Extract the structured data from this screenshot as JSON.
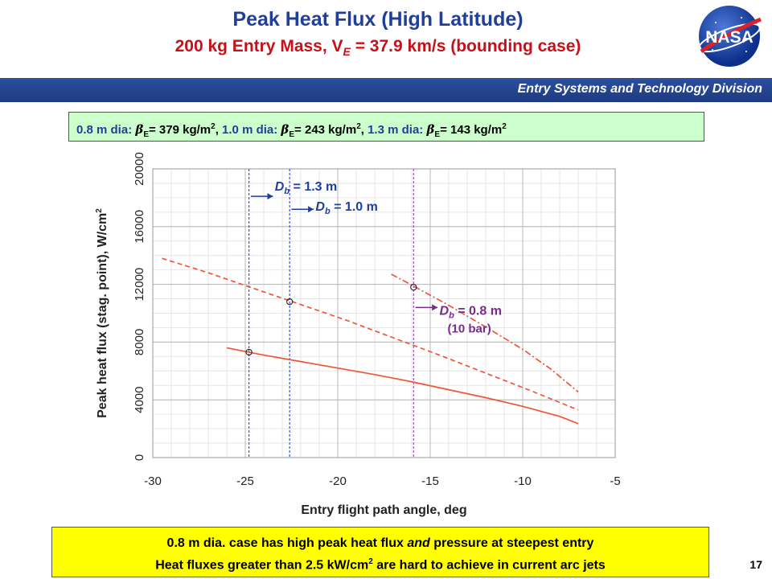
{
  "header": {
    "title": "Peak Heat Flux (High Latitude)",
    "subtitle_prefix": "200 kg Entry Mass, V",
    "subtitle_sub": "E",
    "subtitle_suffix": " = 37.9 km/s (bounding case)",
    "logo_text": "NASA",
    "division": "Entry Systems and Technology Division"
  },
  "ballistic_box": {
    "entries": [
      {
        "dia": "0.8 m dia: ",
        "beta": "β",
        "beta_sub": "E",
        "value": "= 379 kg/m",
        "unit_sup": "2",
        "sep": ", "
      },
      {
        "dia": "1.0 m dia: ",
        "beta": "β",
        "beta_sub": "E",
        "value": "= 243 kg/m",
        "unit_sup": "2",
        "sep": ", "
      },
      {
        "dia": "1.3 m dia: ",
        "beta": "β",
        "beta_sub": "E",
        "value": "= 143 kg/m",
        "unit_sup": "2",
        "sep": ""
      }
    ]
  },
  "chart_data": {
    "type": "line",
    "xlabel": "Entry flight path angle, deg",
    "ylabel": "Peak heat flux (stag. point), W/cm",
    "ylabel_sup": "2",
    "xlim": [
      -30,
      -5
    ],
    "ylim": [
      0,
      20000
    ],
    "xticks": [
      -30,
      -25,
      -20,
      -15,
      -10,
      -5
    ],
    "yticks": [
      0,
      4000,
      8000,
      12000,
      16000,
      20000
    ],
    "grid": true,
    "series": [
      {
        "style": "solid",
        "color": "#f0553a",
        "x": [
          -26,
          -24,
          -22,
          -20,
          -18,
          -16,
          -14,
          -12,
          -10,
          -8,
          -7
        ],
        "y": [
          7600,
          7100,
          6650,
          6200,
          5750,
          5250,
          4700,
          4150,
          3550,
          2850,
          2350
        ]
      },
      {
        "style": "dashed",
        "color": "#f0553a",
        "x": [
          -29.5,
          -27,
          -24.5,
          -22,
          -19.5,
          -17,
          -14.5,
          -12,
          -9.5,
          -7
        ],
        "y": [
          13800,
          12800,
          11700,
          10600,
          9500,
          8300,
          7100,
          5850,
          4600,
          3300
        ]
      },
      {
        "style": "dashdot",
        "color": "#f0553a",
        "x": [
          -17.1,
          -16,
          -14,
          -12,
          -10,
          -8.5,
          -7
        ],
        "y": [
          12700,
          11950,
          10550,
          9050,
          7500,
          6150,
          4550
        ]
      }
    ],
    "markers": [
      {
        "x": -24.8,
        "y": 7300
      },
      {
        "x": -22.6,
        "y": 10800
      },
      {
        "x": -15.9,
        "y": 11800
      }
    ],
    "vlines": [
      {
        "x": -24.8,
        "color": "#3a54d6"
      },
      {
        "x": -22.6,
        "color": "#3a54d6"
      },
      {
        "x": -15.9,
        "color": "#a04ab8"
      }
    ],
    "annotations": [
      {
        "main": "D",
        "sub": "b",
        "rest": " = 1.3 m",
        "color": "#1f3f9a",
        "detail": ""
      },
      {
        "main": "D",
        "sub": "b",
        "rest": " = 1.0 m",
        "color": "#1f3f9a",
        "detail": ""
      },
      {
        "main": "D",
        "sub": "b",
        "rest": " = 0.8 m",
        "color": "#7a2a8c",
        "detail": "(10 bar)"
      }
    ]
  },
  "conclusion": {
    "line1_a": "0.8 m dia. case has high peak heat flux ",
    "line1_em": "and",
    "line1_b": " pressure at steepest entry",
    "line2_a": "Heat fluxes greater than 2.5 kW/cm",
    "line2_sup": "2",
    "line2_b": " are hard to achieve in current arc jets"
  },
  "page_number": "17"
}
